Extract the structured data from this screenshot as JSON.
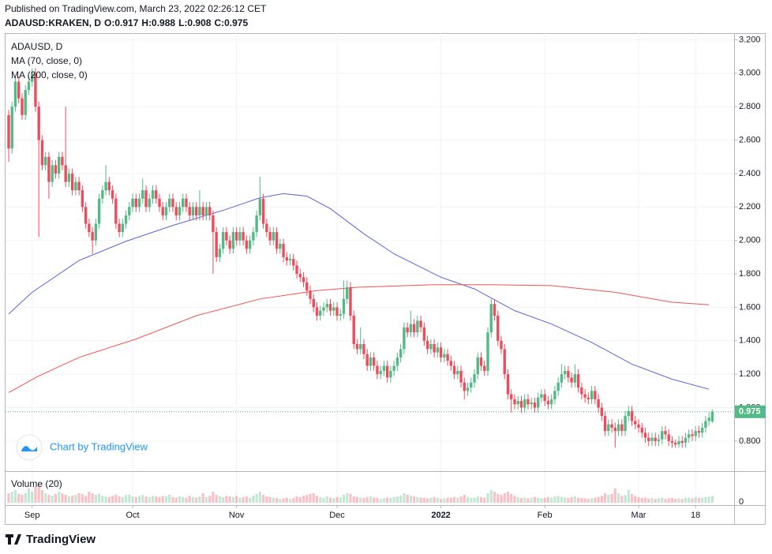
{
  "chart_data": {
    "type": "candlestick",
    "published": "Published on TradingView.com, March 23, 2022 02:26:12 CET",
    "symbol": "ADAUSD:KRAKEN, D",
    "header_labels": [
      "O:",
      "H:",
      "L:",
      "C:"
    ],
    "title": "ADAUSD, D",
    "watermark": "Chart by TradingView",
    "brand": "TradingView",
    "up_color": "#53b987",
    "down_color": "#eb4d5c",
    "grid": true,
    "ylim": [
      0.62,
      3.24
    ],
    "yticks": [
      {
        "value": 0.8,
        "label": "0.800"
      },
      {
        "value": 1.0,
        "label": "1.000"
      },
      {
        "value": 1.2,
        "label": "1.200"
      },
      {
        "value": 1.4,
        "label": "1.400"
      },
      {
        "value": 1.6,
        "label": "1.600"
      },
      {
        "value": 1.8,
        "label": "1.800"
      },
      {
        "value": 2.0,
        "label": "2.000"
      },
      {
        "value": 2.2,
        "label": "2.200"
      },
      {
        "value": 2.4,
        "label": "2.400"
      },
      {
        "value": 2.6,
        "label": "2.600"
      },
      {
        "value": 2.8,
        "label": "2.800"
      },
      {
        "value": 3.0,
        "label": "3.000"
      },
      {
        "value": 3.2,
        "label": "3.200"
      }
    ],
    "xlim": [
      -0.94,
      216.5
    ],
    "xticks": [
      {
        "value": 7,
        "label": "Sep"
      },
      {
        "value": 37,
        "label": "Oct"
      },
      {
        "value": 68,
        "label": "Nov"
      },
      {
        "value": 98,
        "label": "Dec"
      },
      {
        "value": 129,
        "label": "2022"
      },
      {
        "value": 160,
        "label": "Feb"
      },
      {
        "value": 188,
        "label": "Mar"
      },
      {
        "value": 205,
        "label": "18"
      }
    ],
    "open": [
      2.75,
      2.55,
      2.8,
      2.95,
      2.85,
      2.75,
      2.9,
      2.95,
      3.0,
      2.8,
      2.6,
      2.45,
      2.5,
      2.35,
      2.45,
      2.4,
      2.5,
      2.45,
      2.35,
      2.4,
      2.3,
      2.35,
      2.3,
      2.2,
      2.1,
      2.05,
      2.0,
      2.1,
      2.25,
      2.3,
      2.35,
      2.3,
      2.25,
      2.1,
      2.05,
      2.1,
      2.15,
      2.2,
      2.25,
      2.2,
      2.25,
      2.3,
      2.2,
      2.25,
      2.3,
      2.25,
      2.2,
      2.15,
      2.2,
      2.25,
      2.2,
      2.15,
      2.2,
      2.25,
      2.2,
      2.15,
      2.2,
      2.15,
      2.2,
      2.15,
      2.2,
      2.15,
      2.05,
      1.9,
      1.95,
      2.05,
      2.0,
      1.95,
      2.05,
      2.0,
      2.05,
      2.0,
      1.95,
      2.0,
      2.05,
      2.15,
      2.25,
      2.1,
      2.05,
      2.0,
      2.05,
      1.95,
      1.98,
      1.9,
      1.88,
      1.89,
      1.85,
      1.8,
      1.78,
      1.75,
      1.7,
      1.65,
      1.6,
      1.55,
      1.58,
      1.6,
      1.62,
      1.58,
      1.6,
      1.55,
      1.56,
      1.65,
      1.72,
      1.55,
      1.38,
      1.35,
      1.38,
      1.32,
      1.25,
      1.3,
      1.25,
      1.2,
      1.22,
      1.25,
      1.18,
      1.22,
      1.25,
      1.3,
      1.35,
      1.48,
      1.45,
      1.5,
      1.45,
      1.52,
      1.48,
      1.4,
      1.35,
      1.38,
      1.33,
      1.36,
      1.3,
      1.32,
      1.28,
      1.25,
      1.2,
      1.22,
      1.15,
      1.1,
      1.12,
      1.15,
      1.2,
      1.3,
      1.25,
      1.22,
      1.45,
      1.62,
      1.55,
      1.4,
      1.35,
      1.2,
      1.08,
      1.05,
      1.02,
      1.04,
      1.0,
      1.05,
      1.02,
      1.03,
      1.0,
      1.06,
      1.08,
      1.04,
      1.02,
      1.05,
      1.1,
      1.15,
      1.2,
      1.22,
      1.18,
      1.15,
      1.2,
      1.12,
      1.08,
      1.06,
      1.05,
      1.1,
      1.05,
      1.0,
      0.95,
      0.86,
      0.9,
      0.88,
      0.86,
      0.9,
      0.86,
      0.95,
      0.98,
      0.92,
      0.9,
      0.88,
      0.85,
      0.82,
      0.8,
      0.82,
      0.8,
      0.81,
      0.86,
      0.84,
      0.8,
      0.79,
      0.78,
      0.8,
      0.79,
      0.82,
      0.84,
      0.83,
      0.86,
      0.85,
      0.88,
      0.92,
      0.917
    ],
    "high": [
      2.78,
      2.83,
      2.98,
      2.98,
      2.88,
      2.93,
      2.98,
      3.03,
      3.03,
      2.83,
      2.63,
      2.53,
      2.53,
      2.48,
      2.48,
      2.53,
      2.53,
      2.8,
      2.43,
      2.43,
      2.38,
      2.38,
      2.33,
      2.23,
      2.13,
      2.08,
      2.13,
      2.28,
      2.33,
      2.45,
      2.38,
      2.33,
      2.28,
      2.13,
      2.13,
      2.18,
      2.23,
      2.28,
      2.28,
      2.28,
      2.37,
      2.33,
      2.28,
      2.33,
      2.33,
      2.28,
      2.23,
      2.23,
      2.28,
      2.28,
      2.23,
      2.23,
      2.28,
      2.28,
      2.23,
      2.23,
      2.23,
      2.3,
      2.23,
      2.23,
      2.23,
      2.18,
      2.08,
      1.98,
      2.08,
      2.08,
      2.03,
      2.08,
      2.08,
      2.08,
      2.08,
      2.03,
      2.03,
      2.08,
      2.18,
      2.38,
      2.28,
      2.13,
      2.08,
      2.08,
      2.08,
      2.01,
      2.01,
      1.93,
      1.92,
      1.92,
      1.88,
      1.83,
      1.81,
      1.78,
      1.73,
      1.68,
      1.63,
      1.61,
      1.63,
      1.65,
      1.65,
      1.63,
      1.63,
      1.59,
      1.76,
      1.76,
      1.75,
      1.58,
      1.41,
      1.48,
      1.41,
      1.35,
      1.33,
      1.33,
      1.28,
      1.25,
      1.28,
      1.28,
      1.25,
      1.28,
      1.33,
      1.38,
      1.51,
      1.51,
      1.58,
      1.53,
      1.55,
      1.55,
      1.51,
      1.43,
      1.41,
      1.41,
      1.39,
      1.39,
      1.35,
      1.35,
      1.31,
      1.28,
      1.25,
      1.25,
      1.18,
      1.15,
      1.18,
      1.23,
      1.33,
      1.33,
      1.28,
      1.48,
      1.65,
      1.65,
      1.58,
      1.43,
      1.38,
      1.23,
      1.11,
      1.08,
      1.07,
      1.07,
      1.08,
      1.08,
      1.06,
      1.06,
      1.09,
      1.11,
      1.11,
      1.07,
      1.08,
      1.13,
      1.18,
      1.26,
      1.25,
      1.25,
      1.21,
      1.26,
      1.23,
      1.15,
      1.11,
      1.09,
      1.13,
      1.13,
      1.08,
      1.03,
      0.98,
      0.93,
      0.93,
      0.91,
      0.93,
      0.93,
      0.98,
      1.01,
      1.01,
      0.95,
      0.93,
      0.91,
      0.88,
      0.85,
      0.85,
      0.85,
      0.84,
      0.89,
      0.89,
      0.87,
      0.83,
      0.81,
      0.83,
      0.83,
      0.85,
      0.87,
      0.87,
      0.89,
      0.89,
      0.91,
      0.95,
      0.97,
      0.988
    ],
    "low": [
      2.47,
      2.52,
      2.77,
      2.82,
      2.72,
      2.72,
      2.87,
      2.92,
      2.77,
      2.02,
      2.42,
      2.42,
      2.25,
      2.32,
      2.37,
      2.37,
      2.42,
      2.32,
      2.32,
      2.27,
      2.27,
      2.27,
      2.17,
      2.07,
      2.02,
      1.92,
      1.97,
      2.07,
      2.22,
      2.27,
      2.27,
      2.22,
      2.07,
      2.02,
      2.02,
      2.07,
      2.12,
      2.17,
      2.17,
      2.17,
      2.22,
      2.17,
      2.17,
      2.22,
      2.22,
      2.17,
      2.12,
      2.12,
      2.17,
      2.17,
      2.12,
      2.12,
      2.17,
      2.17,
      2.12,
      2.12,
      2.12,
      2.12,
      2.12,
      2.12,
      2.12,
      1.8,
      1.87,
      1.87,
      1.92,
      1.97,
      1.92,
      1.92,
      1.97,
      1.97,
      1.97,
      1.92,
      1.92,
      1.97,
      2.02,
      2.12,
      2.07,
      2.02,
      1.97,
      1.97,
      1.92,
      1.92,
      1.87,
      1.85,
      1.85,
      1.82,
      1.77,
      1.75,
      1.72,
      1.67,
      1.62,
      1.57,
      1.52,
      1.52,
      1.55,
      1.57,
      1.55,
      1.55,
      1.52,
      1.52,
      1.53,
      1.62,
      1.52,
      1.35,
      1.32,
      1.32,
      1.29,
      1.22,
      1.22,
      1.22,
      1.17,
      1.17,
      1.19,
      1.15,
      1.15,
      1.19,
      1.22,
      1.27,
      1.32,
      1.42,
      1.42,
      1.42,
      1.42,
      1.45,
      1.37,
      1.32,
      1.32,
      1.3,
      1.3,
      1.27,
      1.27,
      1.25,
      1.22,
      1.17,
      1.17,
      1.12,
      1.05,
      1.07,
      1.09,
      1.12,
      1.17,
      1.22,
      1.19,
      1.19,
      1.42,
      1.52,
      1.37,
      1.32,
      1.17,
      1.05,
      0.97,
      0.99,
      0.99,
      0.97,
      0.97,
      0.99,
      0.99,
      0.97,
      0.97,
      1.03,
      1.01,
      0.99,
      0.99,
      1.02,
      1.07,
      1.12,
      1.17,
      1.15,
      1.12,
      1.12,
      1.09,
      1.05,
      1.03,
      1.02,
      1.02,
      1.02,
      0.97,
      0.92,
      0.83,
      0.83,
      0.85,
      0.76,
      0.83,
      0.83,
      0.83,
      0.92,
      0.89,
      0.87,
      0.85,
      0.82,
      0.79,
      0.77,
      0.77,
      0.77,
      0.77,
      0.78,
      0.81,
      0.77,
      0.76,
      0.76,
      0.76,
      0.76,
      0.76,
      0.79,
      0.8,
      0.8,
      0.82,
      0.82,
      0.85,
      0.89,
      0.908
    ],
    "close": [
      2.55,
      2.8,
      2.95,
      2.85,
      2.75,
      2.9,
      2.95,
      3.0,
      2.8,
      2.6,
      2.45,
      2.5,
      2.35,
      2.45,
      2.4,
      2.5,
      2.45,
      2.35,
      2.4,
      2.3,
      2.35,
      2.3,
      2.2,
      2.1,
      2.05,
      2.0,
      2.1,
      2.25,
      2.3,
      2.35,
      2.3,
      2.25,
      2.1,
      2.05,
      2.1,
      2.15,
      2.2,
      2.25,
      2.2,
      2.25,
      2.3,
      2.2,
      2.25,
      2.3,
      2.25,
      2.2,
      2.15,
      2.2,
      2.25,
      2.2,
      2.15,
      2.2,
      2.25,
      2.2,
      2.15,
      2.2,
      2.15,
      2.2,
      2.15,
      2.2,
      2.15,
      2.05,
      1.9,
      1.95,
      2.05,
      2.0,
      1.95,
      2.05,
      2.0,
      2.05,
      2.0,
      1.95,
      2.0,
      2.05,
      2.15,
      2.25,
      2.1,
      2.05,
      2.0,
      2.05,
      1.95,
      1.98,
      1.9,
      1.88,
      1.89,
      1.85,
      1.8,
      1.78,
      1.75,
      1.7,
      1.65,
      1.6,
      1.55,
      1.58,
      1.6,
      1.62,
      1.58,
      1.6,
      1.55,
      1.56,
      1.65,
      1.72,
      1.55,
      1.38,
      1.35,
      1.38,
      1.32,
      1.25,
      1.3,
      1.25,
      1.2,
      1.22,
      1.25,
      1.18,
      1.22,
      1.25,
      1.3,
      1.35,
      1.48,
      1.45,
      1.5,
      1.45,
      1.52,
      1.48,
      1.4,
      1.35,
      1.38,
      1.33,
      1.36,
      1.3,
      1.32,
      1.28,
      1.25,
      1.2,
      1.22,
      1.15,
      1.1,
      1.12,
      1.15,
      1.2,
      1.3,
      1.25,
      1.22,
      1.45,
      1.62,
      1.55,
      1.4,
      1.35,
      1.2,
      1.08,
      1.05,
      1.02,
      1.04,
      1.0,
      1.05,
      1.02,
      1.03,
      1.0,
      1.06,
      1.08,
      1.04,
      1.02,
      1.05,
      1.1,
      1.15,
      1.2,
      1.22,
      1.18,
      1.15,
      1.2,
      1.12,
      1.08,
      1.06,
      1.05,
      1.1,
      1.05,
      1.0,
      0.95,
      0.86,
      0.9,
      0.88,
      0.86,
      0.9,
      0.86,
      0.95,
      0.98,
      0.92,
      0.9,
      0.88,
      0.85,
      0.82,
      0.8,
      0.82,
      0.8,
      0.81,
      0.86,
      0.84,
      0.8,
      0.79,
      0.78,
      0.8,
      0.79,
      0.82,
      0.84,
      0.83,
      0.86,
      0.85,
      0.88,
      0.92,
      0.94,
      0.975
    ],
    "indicators": [
      {
        "name": "MA (70, close, 0)",
        "color": "#5b63e0",
        "x": [
          0,
          7,
          21,
          35,
          49,
          64,
          75,
          82,
          89,
          96,
          106,
          115,
          129,
          139,
          151,
          162,
          174,
          186,
          198,
          209
        ],
        "values": [
          1.56,
          1.69,
          1.88,
          1.995,
          2.09,
          2.18,
          2.255,
          2.28,
          2.265,
          2.19,
          2.04,
          1.92,
          1.78,
          1.71,
          1.58,
          1.5,
          1.39,
          1.26,
          1.17,
          1.11
        ]
      },
      {
        "name": "MA (200, close, 0)",
        "color": "#ef5350",
        "x": [
          0,
          9,
          21,
          38,
          56,
          75,
          92,
          104,
          127,
          144,
          162,
          181,
          198,
          209
        ],
        "values": [
          1.09,
          1.19,
          1.3,
          1.41,
          1.55,
          1.65,
          1.7,
          1.72,
          1.735,
          1.735,
          1.73,
          1.69,
          1.63,
          1.615
        ]
      }
    ],
    "volume": {
      "name": "Volume (20)",
      "ylim": [
        0,
        100
      ],
      "yticks": [
        0
      ],
      "values": [
        30,
        35,
        40,
        28,
        25,
        30,
        45,
        35,
        50,
        55,
        40,
        30,
        25,
        22,
        28,
        35,
        30,
        25,
        20,
        22,
        25,
        30,
        28,
        22,
        35,
        30,
        25,
        28,
        22,
        20,
        18,
        22,
        25,
        20,
        18,
        24,
        26,
        20,
        18,
        22,
        25,
        20,
        18,
        22,
        20,
        18,
        22,
        20,
        25,
        18,
        16,
        20,
        18,
        15,
        22,
        18,
        16,
        20,
        30,
        18,
        22,
        35,
        25,
        20,
        18,
        22,
        20,
        18,
        22,
        15,
        18,
        20,
        16,
        22,
        28,
        35,
        25,
        20,
        18,
        16,
        15,
        12,
        14,
        16,
        12,
        15,
        20,
        18,
        22,
        25,
        28,
        30,
        22,
        18,
        15,
        20,
        16,
        14,
        18,
        16,
        25,
        30,
        28,
        20,
        18,
        16,
        15,
        18,
        20,
        16,
        15,
        12,
        14,
        16,
        15,
        18,
        20,
        22,
        30,
        25,
        22,
        20,
        18,
        16,
        15,
        14,
        16,
        18,
        15,
        12,
        14,
        16,
        15,
        18,
        16,
        20,
        25,
        18,
        15,
        16,
        20,
        18,
        16,
        30,
        40,
        35,
        28,
        25,
        30,
        35,
        28,
        22,
        18,
        15,
        16,
        14,
        15,
        18,
        16,
        14,
        15,
        18,
        16,
        20,
        22,
        18,
        16,
        15,
        18,
        20,
        16,
        15,
        14,
        12,
        14,
        16,
        18,
        22,
        30,
        25,
        28,
        45,
        30,
        22,
        25,
        40,
        28,
        22,
        18,
        15,
        16,
        14,
        15,
        12,
        14,
        16,
        12,
        14,
        15,
        12,
        14,
        12,
        15,
        16,
        14,
        18,
        15,
        16,
        18,
        20,
        22
      ]
    }
  }
}
